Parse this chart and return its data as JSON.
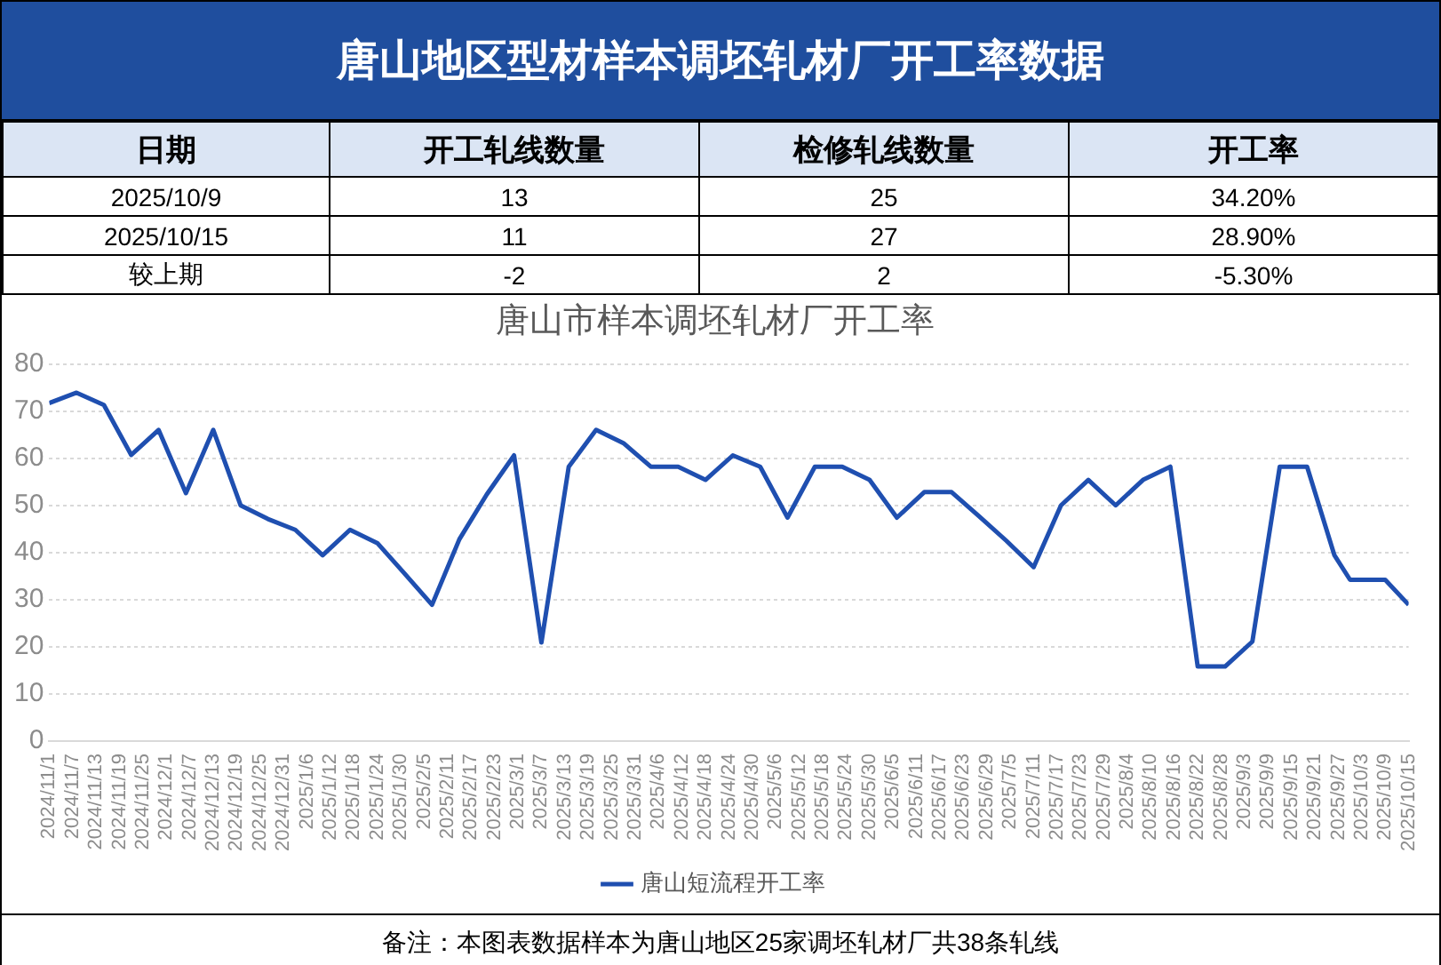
{
  "chart_data": [
    {
      "type": "other",
      "title": "唐山地区型材样本调坯轧材厂开工率数据",
      "categories": [
        "日期",
        "开工轧线数量",
        "检修轧线数量",
        "开工率"
      ],
      "y_categories": [
        "2025/10/9",
        "2025/10/15",
        "较上期"
      ],
      "cell_labels": [
        [
          "13",
          "25",
          "34.20%"
        ],
        [
          "11",
          "27",
          "28.90%"
        ],
        [
          "-2",
          "2",
          "-5.30%"
        ]
      ]
    },
    {
      "type": "line",
      "title": "唐山市样本调坯轧材厂开工率",
      "x": [
        "2024-11-01",
        "2024-11-08",
        "2024-11-15",
        "2024-11-22",
        "2024-11-29",
        "2024-12-06",
        "2024-12-13",
        "2024-12-20",
        "2024-12-27",
        "2025-01-03",
        "2025-01-10",
        "2025-01-17",
        "2025-01-24",
        "2025-01-31",
        "2025-02-07",
        "2025-02-14",
        "2025-02-21",
        "2025-02-28",
        "2025-03-07",
        "2025-03-14",
        "2025-03-21",
        "2025-03-28",
        "2025-04-04",
        "2025-04-11",
        "2025-04-18",
        "2025-04-25",
        "2025-05-02",
        "2025-05-09",
        "2025-05-16",
        "2025-05-23",
        "2025-05-30",
        "2025-06-06",
        "2025-06-13",
        "2025-06-20",
        "2025-06-27",
        "2025-07-04",
        "2025-07-11",
        "2025-07-18",
        "2025-07-25",
        "2025-08-01",
        "2025-08-08",
        "2025-08-15",
        "2025-08-22",
        "2025-08-29",
        "2025-09-05",
        "2025-09-12",
        "2025-09-19",
        "2025-09-26",
        "2025-09-30",
        "2025-10-09",
        "2025-10-15"
      ],
      "series": [
        {
          "name": "唐山短流程开工率",
          "color": "#1f4fb0",
          "values": [
            71.7,
            73.9,
            71.3,
            60.7,
            66,
            52.6,
            66,
            50,
            47.1,
            44.8,
            39.4,
            44.8,
            42,
            35.5,
            28.9,
            42.8,
            52.3,
            60.6,
            20.9,
            58.2,
            66,
            63.2,
            58.2,
            58.2,
            55.4,
            60.6,
            58.2,
            47.4,
            58.2,
            58.2,
            55.4,
            47.4,
            52.8,
            52.8,
            47.7,
            42.5,
            36.9,
            50,
            55.4,
            50,
            55.4,
            58.2,
            15.8,
            15.8,
            21.1,
            58.2,
            58.2,
            39.4,
            34.2,
            34.2,
            28.9
          ]
        }
      ],
      "xlim": [
        "2024-11-01",
        "2025-10-15"
      ],
      "xticks": [
        {
          "value": "2024-11-01",
          "label": "2024/11/1"
        },
        {
          "value": "2024-11-07",
          "label": "2024/11/7"
        },
        {
          "value": "2024-11-13",
          "label": "2024/11/13"
        },
        {
          "value": "2024-11-19",
          "label": "2024/11/19"
        },
        {
          "value": "2024-11-25",
          "label": "2024/11/25"
        },
        {
          "value": "2024-12-01",
          "label": "2024/12/1"
        },
        {
          "value": "2024-12-07",
          "label": "2024/12/7"
        },
        {
          "value": "2024-12-13",
          "label": "2024/12/13"
        },
        {
          "value": "2024-12-19",
          "label": "2024/12/19"
        },
        {
          "value": "2024-12-25",
          "label": "2024/12/25"
        },
        {
          "value": "2024-12-31",
          "label": "2024/12/31"
        },
        {
          "value": "2025-01-06",
          "label": "2025/1/6"
        },
        {
          "value": "2025-01-12",
          "label": "2025/1/12"
        },
        {
          "value": "2025-01-18",
          "label": "2025/1/18"
        },
        {
          "value": "2025-01-24",
          "label": "2025/1/24"
        },
        {
          "value": "2025-01-30",
          "label": "2025/1/30"
        },
        {
          "value": "2025-02-05",
          "label": "2025/2/5"
        },
        {
          "value": "2025-02-11",
          "label": "2025/2/11"
        },
        {
          "value": "2025-02-17",
          "label": "2025/2/17"
        },
        {
          "value": "2025-02-23",
          "label": "2025/2/23"
        },
        {
          "value": "2025-03-01",
          "label": "2025/3/1"
        },
        {
          "value": "2025-03-07",
          "label": "2025/3/7"
        },
        {
          "value": "2025-03-13",
          "label": "2025/3/13"
        },
        {
          "value": "2025-03-19",
          "label": "2025/3/19"
        },
        {
          "value": "2025-03-25",
          "label": "2025/3/25"
        },
        {
          "value": "2025-03-31",
          "label": "2025/3/31"
        },
        {
          "value": "2025-04-06",
          "label": "2025/4/6"
        },
        {
          "value": "2025-04-12",
          "label": "2025/4/12"
        },
        {
          "value": "2025-04-18",
          "label": "2025/4/18"
        },
        {
          "value": "2025-04-24",
          "label": "2025/4/24"
        },
        {
          "value": "2025-04-30",
          "label": "2025/4/30"
        },
        {
          "value": "2025-05-06",
          "label": "2025/5/6"
        },
        {
          "value": "2025-05-12",
          "label": "2025/5/12"
        },
        {
          "value": "2025-05-18",
          "label": "2025/5/18"
        },
        {
          "value": "2025-05-24",
          "label": "2025/5/24"
        },
        {
          "value": "2025-05-30",
          "label": "2025/5/30"
        },
        {
          "value": "2025-06-05",
          "label": "2025/6/5"
        },
        {
          "value": "2025-06-11",
          "label": "2025/6/11"
        },
        {
          "value": "2025-06-17",
          "label": "2025/6/17"
        },
        {
          "value": "2025-06-23",
          "label": "2025/6/23"
        },
        {
          "value": "2025-06-29",
          "label": "2025/6/29"
        },
        {
          "value": "2025-07-05",
          "label": "2025/7/5"
        },
        {
          "value": "2025-07-11",
          "label": "2025/7/11"
        },
        {
          "value": "2025-07-17",
          "label": "2025/7/17"
        },
        {
          "value": "2025-07-23",
          "label": "2025/7/23"
        },
        {
          "value": "2025-07-29",
          "label": "2025/7/29"
        },
        {
          "value": "2025-08-04",
          "label": "2025/8/4"
        },
        {
          "value": "2025-08-10",
          "label": "2025/8/10"
        },
        {
          "value": "2025-08-16",
          "label": "2025/8/16"
        },
        {
          "value": "2025-08-22",
          "label": "2025/8/22"
        },
        {
          "value": "2025-08-28",
          "label": "2025/8/28"
        },
        {
          "value": "2025-09-03",
          "label": "2025/9/3"
        },
        {
          "value": "2025-09-09",
          "label": "2025/9/9"
        },
        {
          "value": "2025-09-15",
          "label": "2025/9/15"
        },
        {
          "value": "2025-09-21",
          "label": "2025/9/21"
        },
        {
          "value": "2025-09-27",
          "label": "2025/9/27"
        },
        {
          "value": "2025-10-03",
          "label": "2025/10/3"
        },
        {
          "value": "2025-10-09",
          "label": "2025/10/9"
        },
        {
          "value": "2025-10-15",
          "label": "2025/10/15"
        }
      ],
      "ylim": [
        0,
        80
      ],
      "yticks": [
        0,
        10,
        20,
        30,
        40,
        50,
        60,
        70,
        80
      ],
      "grid": "y",
      "legend": "bottom",
      "annotations": [
        "备注：本图表数据样本为唐山地区25家调坯轧材厂共38条轧线"
      ]
    }
  ]
}
